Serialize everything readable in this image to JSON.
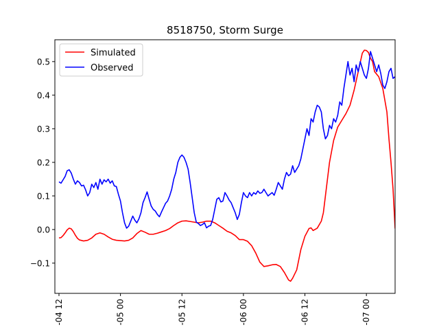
{
  "chart_data": {
    "type": "line",
    "title": "8518750, Storm Surge",
    "xlabel": "",
    "ylabel": "",
    "x_unit": "hours",
    "xlim": [
      -1,
      82
    ],
    "ylim": [
      -0.19,
      0.565
    ],
    "x_ticks": [
      {
        "x": 0,
        "label": "-04 12"
      },
      {
        "x": 15,
        "label": "-05 00"
      },
      {
        "x": 30,
        "label": "-05 12"
      },
      {
        "x": 45,
        "label": "-06 00"
      },
      {
        "x": 60,
        "label": "-06 12"
      },
      {
        "x": 75,
        "label": "-07 00"
      }
    ],
    "y_ticks": [
      -0.1,
      0.0,
      0.1,
      0.2,
      0.3,
      0.4,
      0.5
    ],
    "y_tick_labels": [
      "−0.1",
      "0.0",
      "0.1",
      "0.2",
      "0.3",
      "0.4",
      "0.5"
    ],
    "legend": {
      "position": "top-left"
    },
    "grid": false,
    "series": [
      {
        "name": "Simulated",
        "color": "#ff0000",
        "points": [
          [
            0,
            -0.025
          ],
          [
            0.5,
            -0.024
          ],
          [
            1,
            -0.018
          ],
          [
            1.5,
            -0.01
          ],
          [
            2,
            -0.001
          ],
          [
            2.5,
            0.004
          ],
          [
            3,
            0.002
          ],
          [
            3.5,
            -0.006
          ],
          [
            4,
            -0.017
          ],
          [
            4.5,
            -0.026
          ],
          [
            5,
            -0.031
          ],
          [
            6,
            -0.034
          ],
          [
            7,
            -0.032
          ],
          [
            8,
            -0.025
          ],
          [
            9,
            -0.014
          ],
          [
            10,
            -0.01
          ],
          [
            11,
            -0.014
          ],
          [
            12,
            -0.022
          ],
          [
            13,
            -0.029
          ],
          [
            14,
            -0.032
          ],
          [
            15,
            -0.033
          ],
          [
            16,
            -0.034
          ],
          [
            17,
            -0.032
          ],
          [
            18,
            -0.025
          ],
          [
            19,
            -0.012
          ],
          [
            20,
            -0.003
          ],
          [
            21,
            -0.008
          ],
          [
            22,
            -0.014
          ],
          [
            23,
            -0.014
          ],
          [
            24,
            -0.011
          ],
          [
            25,
            -0.007
          ],
          [
            26,
            -0.003
          ],
          [
            27,
            0.003
          ],
          [
            28,
            0.012
          ],
          [
            29,
            0.02
          ],
          [
            30,
            0.025
          ],
          [
            31,
            0.026
          ],
          [
            32,
            0.024
          ],
          [
            33,
            0.022
          ],
          [
            34,
            0.02
          ],
          [
            35,
            0.022
          ],
          [
            36,
            0.025
          ],
          [
            37,
            0.025
          ],
          [
            38,
            0.02
          ],
          [
            39,
            0.012
          ],
          [
            40,
            0.004
          ],
          [
            41,
            -0.005
          ],
          [
            42,
            -0.01
          ],
          [
            43,
            -0.018
          ],
          [
            44,
            -0.03
          ],
          [
            45,
            -0.03
          ],
          [
            46,
            -0.035
          ],
          [
            47,
            -0.048
          ],
          [
            48,
            -0.07
          ],
          [
            49,
            -0.097
          ],
          [
            50,
            -0.11
          ],
          [
            51,
            -0.108
          ],
          [
            52,
            -0.105
          ],
          [
            53,
            -0.104
          ],
          [
            54,
            -0.11
          ],
          [
            55,
            -0.128
          ],
          [
            56,
            -0.15
          ],
          [
            56.5,
            -0.154
          ],
          [
            57,
            -0.145
          ],
          [
            58,
            -0.12
          ],
          [
            59,
            -0.06
          ],
          [
            60,
            -0.02
          ],
          [
            61,
            0.003
          ],
          [
            61.5,
            0.005
          ],
          [
            62,
            -0.003
          ],
          [
            63,
            0.004
          ],
          [
            64,
            0.025
          ],
          [
            64.5,
            0.05
          ],
          [
            65,
            0.1
          ],
          [
            66,
            0.2
          ],
          [
            67,
            0.265
          ],
          [
            68,
            0.305
          ],
          [
            69,
            0.325
          ],
          [
            70,
            0.345
          ],
          [
            71,
            0.37
          ],
          [
            72,
            0.415
          ],
          [
            73,
            0.47
          ],
          [
            74,
            0.525
          ],
          [
            74.5,
            0.534
          ],
          [
            75,
            0.533
          ],
          [
            75.5,
            0.527
          ],
          [
            76,
            0.51
          ],
          [
            76.5,
            0.5
          ],
          [
            77,
            0.47
          ],
          [
            78,
            0.455
          ],
          [
            79,
            0.42
          ],
          [
            80,
            0.35
          ],
          [
            80.5,
            0.27
          ],
          [
            81,
            0.2
          ],
          [
            81.5,
            0.12
          ],
          [
            82,
            0.003
          ]
        ]
      },
      {
        "name": "Observed",
        "color": "#0000ff",
        "points": [
          [
            0,
            0.142
          ],
          [
            0.5,
            0.138
          ],
          [
            1,
            0.148
          ],
          [
            1.5,
            0.158
          ],
          [
            2,
            0.175
          ],
          [
            2.5,
            0.178
          ],
          [
            3,
            0.168
          ],
          [
            3.5,
            0.15
          ],
          [
            4,
            0.135
          ],
          [
            4.5,
            0.145
          ],
          [
            5,
            0.14
          ],
          [
            5.5,
            0.13
          ],
          [
            6,
            0.132
          ],
          [
            6.5,
            0.118
          ],
          [
            7,
            0.1
          ],
          [
            7.5,
            0.11
          ],
          [
            8,
            0.135
          ],
          [
            8.5,
            0.125
          ],
          [
            9,
            0.14
          ],
          [
            9.5,
            0.12
          ],
          [
            10,
            0.15
          ],
          [
            10.5,
            0.135
          ],
          [
            11,
            0.148
          ],
          [
            11.5,
            0.142
          ],
          [
            12,
            0.15
          ],
          [
            12.5,
            0.138
          ],
          [
            13,
            0.145
          ],
          [
            13.5,
            0.13
          ],
          [
            14,
            0.128
          ],
          [
            14.5,
            0.105
          ],
          [
            15,
            0.085
          ],
          [
            15.5,
            0.05
          ],
          [
            16,
            0.02
          ],
          [
            16.5,
            0.004
          ],
          [
            17,
            0.01
          ],
          [
            17.5,
            0.025
          ],
          [
            18,
            0.04
          ],
          [
            18.5,
            0.028
          ],
          [
            19,
            0.02
          ],
          [
            19.5,
            0.032
          ],
          [
            20,
            0.05
          ],
          [
            20.5,
            0.08
          ],
          [
            21,
            0.095
          ],
          [
            21.5,
            0.112
          ],
          [
            22,
            0.09
          ],
          [
            22.5,
            0.07
          ],
          [
            23,
            0.06
          ],
          [
            23.5,
            0.055
          ],
          [
            24,
            0.045
          ],
          [
            24.5,
            0.038
          ],
          [
            25,
            0.052
          ],
          [
            25.5,
            0.065
          ],
          [
            26,
            0.078
          ],
          [
            26.5,
            0.085
          ],
          [
            27,
            0.1
          ],
          [
            27.5,
            0.12
          ],
          [
            28,
            0.15
          ],
          [
            28.5,
            0.17
          ],
          [
            29,
            0.2
          ],
          [
            29.5,
            0.215
          ],
          [
            30,
            0.222
          ],
          [
            30.5,
            0.215
          ],
          [
            31,
            0.2
          ],
          [
            31.5,
            0.18
          ],
          [
            32,
            0.14
          ],
          [
            32.5,
            0.095
          ],
          [
            33,
            0.05
          ],
          [
            33.5,
            0.022
          ],
          [
            34,
            0.018
          ],
          [
            34.5,
            0.012
          ],
          [
            35,
            0.015
          ],
          [
            35.5,
            0.02
          ],
          [
            36,
            0.005
          ],
          [
            36.5,
            0.01
          ],
          [
            37,
            0.012
          ],
          [
            37.5,
            0.03
          ],
          [
            38,
            0.06
          ],
          [
            38.5,
            0.09
          ],
          [
            39,
            0.095
          ],
          [
            39.5,
            0.082
          ],
          [
            40,
            0.085
          ],
          [
            40.5,
            0.11
          ],
          [
            41,
            0.1
          ],
          [
            41.5,
            0.088
          ],
          [
            42,
            0.08
          ],
          [
            42.5,
            0.065
          ],
          [
            43,
            0.05
          ],
          [
            43.5,
            0.03
          ],
          [
            44,
            0.045
          ],
          [
            44.5,
            0.08
          ],
          [
            45,
            0.11
          ],
          [
            45.5,
            0.1
          ],
          [
            46,
            0.095
          ],
          [
            46.5,
            0.11
          ],
          [
            47,
            0.1
          ],
          [
            47.5,
            0.11
          ],
          [
            48,
            0.105
          ],
          [
            48.5,
            0.115
          ],
          [
            49,
            0.108
          ],
          [
            49.5,
            0.11
          ],
          [
            50,
            0.12
          ],
          [
            50.5,
            0.11
          ],
          [
            51,
            0.1
          ],
          [
            51.5,
            0.105
          ],
          [
            52,
            0.11
          ],
          [
            52.5,
            0.102
          ],
          [
            53,
            0.12
          ],
          [
            53.5,
            0.14
          ],
          [
            54,
            0.13
          ],
          [
            54.5,
            0.12
          ],
          [
            55,
            0.15
          ],
          [
            55.5,
            0.17
          ],
          [
            56,
            0.16
          ],
          [
            56.5,
            0.165
          ],
          [
            57,
            0.19
          ],
          [
            57.5,
            0.17
          ],
          [
            58,
            0.18
          ],
          [
            58.5,
            0.19
          ],
          [
            59,
            0.21
          ],
          [
            59.5,
            0.24
          ],
          [
            60,
            0.27
          ],
          [
            60.5,
            0.3
          ],
          [
            61,
            0.28
          ],
          [
            61.5,
            0.33
          ],
          [
            62,
            0.32
          ],
          [
            62.5,
            0.35
          ],
          [
            63,
            0.37
          ],
          [
            63.5,
            0.365
          ],
          [
            64,
            0.35
          ],
          [
            64.5,
            0.3
          ],
          [
            65,
            0.27
          ],
          [
            65.5,
            0.28
          ],
          [
            66,
            0.31
          ],
          [
            66.5,
            0.3
          ],
          [
            67,
            0.33
          ],
          [
            67.5,
            0.32
          ],
          [
            68,
            0.34
          ],
          [
            68.5,
            0.38
          ],
          [
            69,
            0.37
          ],
          [
            69.5,
            0.42
          ],
          [
            70,
            0.46
          ],
          [
            70.5,
            0.5
          ],
          [
            71,
            0.46
          ],
          [
            71.5,
            0.48
          ],
          [
            72,
            0.44
          ],
          [
            72.5,
            0.49
          ],
          [
            73,
            0.47
          ],
          [
            73.5,
            0.5
          ],
          [
            74,
            0.48
          ],
          [
            74.5,
            0.46
          ],
          [
            75,
            0.45
          ],
          [
            75.5,
            0.48
          ],
          [
            76,
            0.53
          ],
          [
            76.5,
            0.51
          ],
          [
            77,
            0.49
          ],
          [
            77.5,
            0.47
          ],
          [
            78,
            0.49
          ],
          [
            78.5,
            0.465
          ],
          [
            79,
            0.43
          ],
          [
            79.5,
            0.42
          ],
          [
            80,
            0.44
          ],
          [
            80.5,
            0.47
          ],
          [
            81,
            0.48
          ],
          [
            81.5,
            0.45
          ],
          [
            82,
            0.455
          ]
        ]
      }
    ]
  }
}
